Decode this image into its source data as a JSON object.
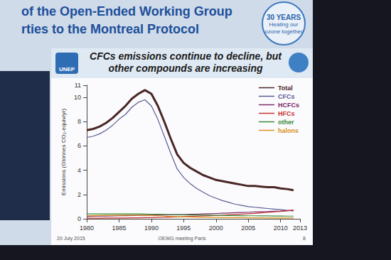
{
  "slide": {
    "header": [
      "of the Open-Ended Working Group",
      "rties to the Montreal Protocol"
    ],
    "badge": [
      "30 YEARS",
      "Healing our ozone together"
    ],
    "logo": "UNEP",
    "footer": {
      "date": "20 July 2015",
      "event": "OEWG meeting Paris",
      "page": "8"
    }
  },
  "chart_data": {
    "type": "line",
    "title": "CFCs emissions continue to decline, but other compounds are increasing",
    "y_label": "Emissions (Gtonnes CO₂-equiv/yr)",
    "x": [
      1980,
      1981,
      1982,
      1983,
      1984,
      1985,
      1986,
      1987,
      1988,
      1989,
      1990,
      1991,
      1992,
      1993,
      1994,
      1995,
      1996,
      1997,
      1998,
      1999,
      2000,
      2001,
      2002,
      2003,
      2004,
      2005,
      2006,
      2007,
      2008,
      2009,
      2010,
      2011,
      2012
    ],
    "xlim": [
      1980,
      2013
    ],
    "xticks": [
      1980,
      1985,
      1990,
      1995,
      2000,
      2005,
      2010
    ],
    "ylim": [
      0,
      11
    ],
    "yticks": [
      0,
      2,
      4,
      6,
      8,
      10
    ],
    "grid": false,
    "legend": "upper right",
    "series": [
      {
        "name": "Total",
        "color": "#4a2626",
        "line_style": "thick",
        "values": [
          7.3,
          7.4,
          7.6,
          7.9,
          8.3,
          8.8,
          9.3,
          9.9,
          10.3,
          10.6,
          10.3,
          9.3,
          8.0,
          6.6,
          5.3,
          4.6,
          4.2,
          3.9,
          3.6,
          3.4,
          3.2,
          3.1,
          3.0,
          2.9,
          2.8,
          2.7,
          2.7,
          2.65,
          2.6,
          2.6,
          2.5,
          2.45,
          2.35
        ]
      },
      {
        "name": "CFCs",
        "color": "#5b5b94",
        "values": [
          6.7,
          6.8,
          7.0,
          7.3,
          7.7,
          8.2,
          8.6,
          9.2,
          9.6,
          9.8,
          9.3,
          8.2,
          6.8,
          5.4,
          4.1,
          3.4,
          2.9,
          2.5,
          2.2,
          1.9,
          1.7,
          1.5,
          1.35,
          1.2,
          1.1,
          1.0,
          0.95,
          0.9,
          0.85,
          0.8,
          0.75,
          0.7,
          0.65
        ]
      },
      {
        "name": "HCFCs",
        "color": "#7a2a6a",
        "values": [
          0.2,
          0.21,
          0.22,
          0.23,
          0.24,
          0.25,
          0.26,
          0.27,
          0.28,
          0.29,
          0.3,
          0.31,
          0.32,
          0.33,
          0.34,
          0.35,
          0.37,
          0.38,
          0.4,
          0.42,
          0.44,
          0.46,
          0.48,
          0.5,
          0.52,
          0.54,
          0.56,
          0.58,
          0.6,
          0.62,
          0.64,
          0.67,
          0.7
        ]
      },
      {
        "name": "HFCs",
        "color": "#c83232",
        "values": [
          0.05,
          0.05,
          0.05,
          0.06,
          0.06,
          0.07,
          0.07,
          0.08,
          0.08,
          0.09,
          0.1,
          0.11,
          0.12,
          0.14,
          0.16,
          0.18,
          0.2,
          0.22,
          0.24,
          0.26,
          0.28,
          0.3,
          0.33,
          0.36,
          0.39,
          0.42,
          0.45,
          0.49,
          0.53,
          0.57,
          0.61,
          0.66,
          0.72
        ]
      },
      {
        "name": "other",
        "color": "#3a8a3a",
        "values": [
          0.4,
          0.4,
          0.4,
          0.4,
          0.4,
          0.4,
          0.4,
          0.4,
          0.4,
          0.39,
          0.38,
          0.37,
          0.36,
          0.35,
          0.34,
          0.33,
          0.32,
          0.31,
          0.3,
          0.3,
          0.29,
          0.28,
          0.27,
          0.27,
          0.26,
          0.25,
          0.25,
          0.24,
          0.24,
          0.23,
          0.23,
          0.22,
          0.22
        ]
      },
      {
        "name": "halons",
        "color": "#d8901e",
        "values": [
          0.25,
          0.26,
          0.27,
          0.28,
          0.29,
          0.3,
          0.3,
          0.3,
          0.3,
          0.29,
          0.27,
          0.25,
          0.22,
          0.2,
          0.18,
          0.16,
          0.15,
          0.14,
          0.13,
          0.12,
          0.11,
          0.1,
          0.1,
          0.09,
          0.09,
          0.08,
          0.08,
          0.08,
          0.07,
          0.07,
          0.07,
          0.06,
          0.06
        ]
      }
    ]
  }
}
